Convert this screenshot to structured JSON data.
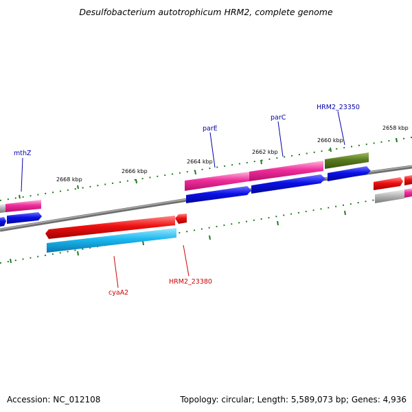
{
  "title": "Desulfobacterium autotrophicum HRM2, complete genome",
  "accession": "Accession: NC_012108",
  "topology": "Topology: circular; Length: 5,589,073 bp; Genes: 4,936",
  "ruler": [
    "2668 kbp",
    "2666 kbp",
    "2664 kbp",
    "2662 kbp",
    "2660 kbp",
    "2658 kbp"
  ],
  "genes_top": [
    "mthZ",
    "parE",
    "parC",
    "HRM2_23350"
  ],
  "genes_bottom": [
    "cyaA2",
    "HRM2_23380"
  ],
  "colors": {
    "ruler_tick": "#1e7a1e",
    "backbone": "#8a8a8a",
    "magenta": "#ee2d9a",
    "blue": "#0a10e6",
    "olive": "#5a7a20",
    "red": "#ee1010",
    "cyan": "#1bb8f0",
    "gray": "#b8b8b8",
    "top_label": "#0000aa",
    "bottom_label": "#cc0000"
  }
}
